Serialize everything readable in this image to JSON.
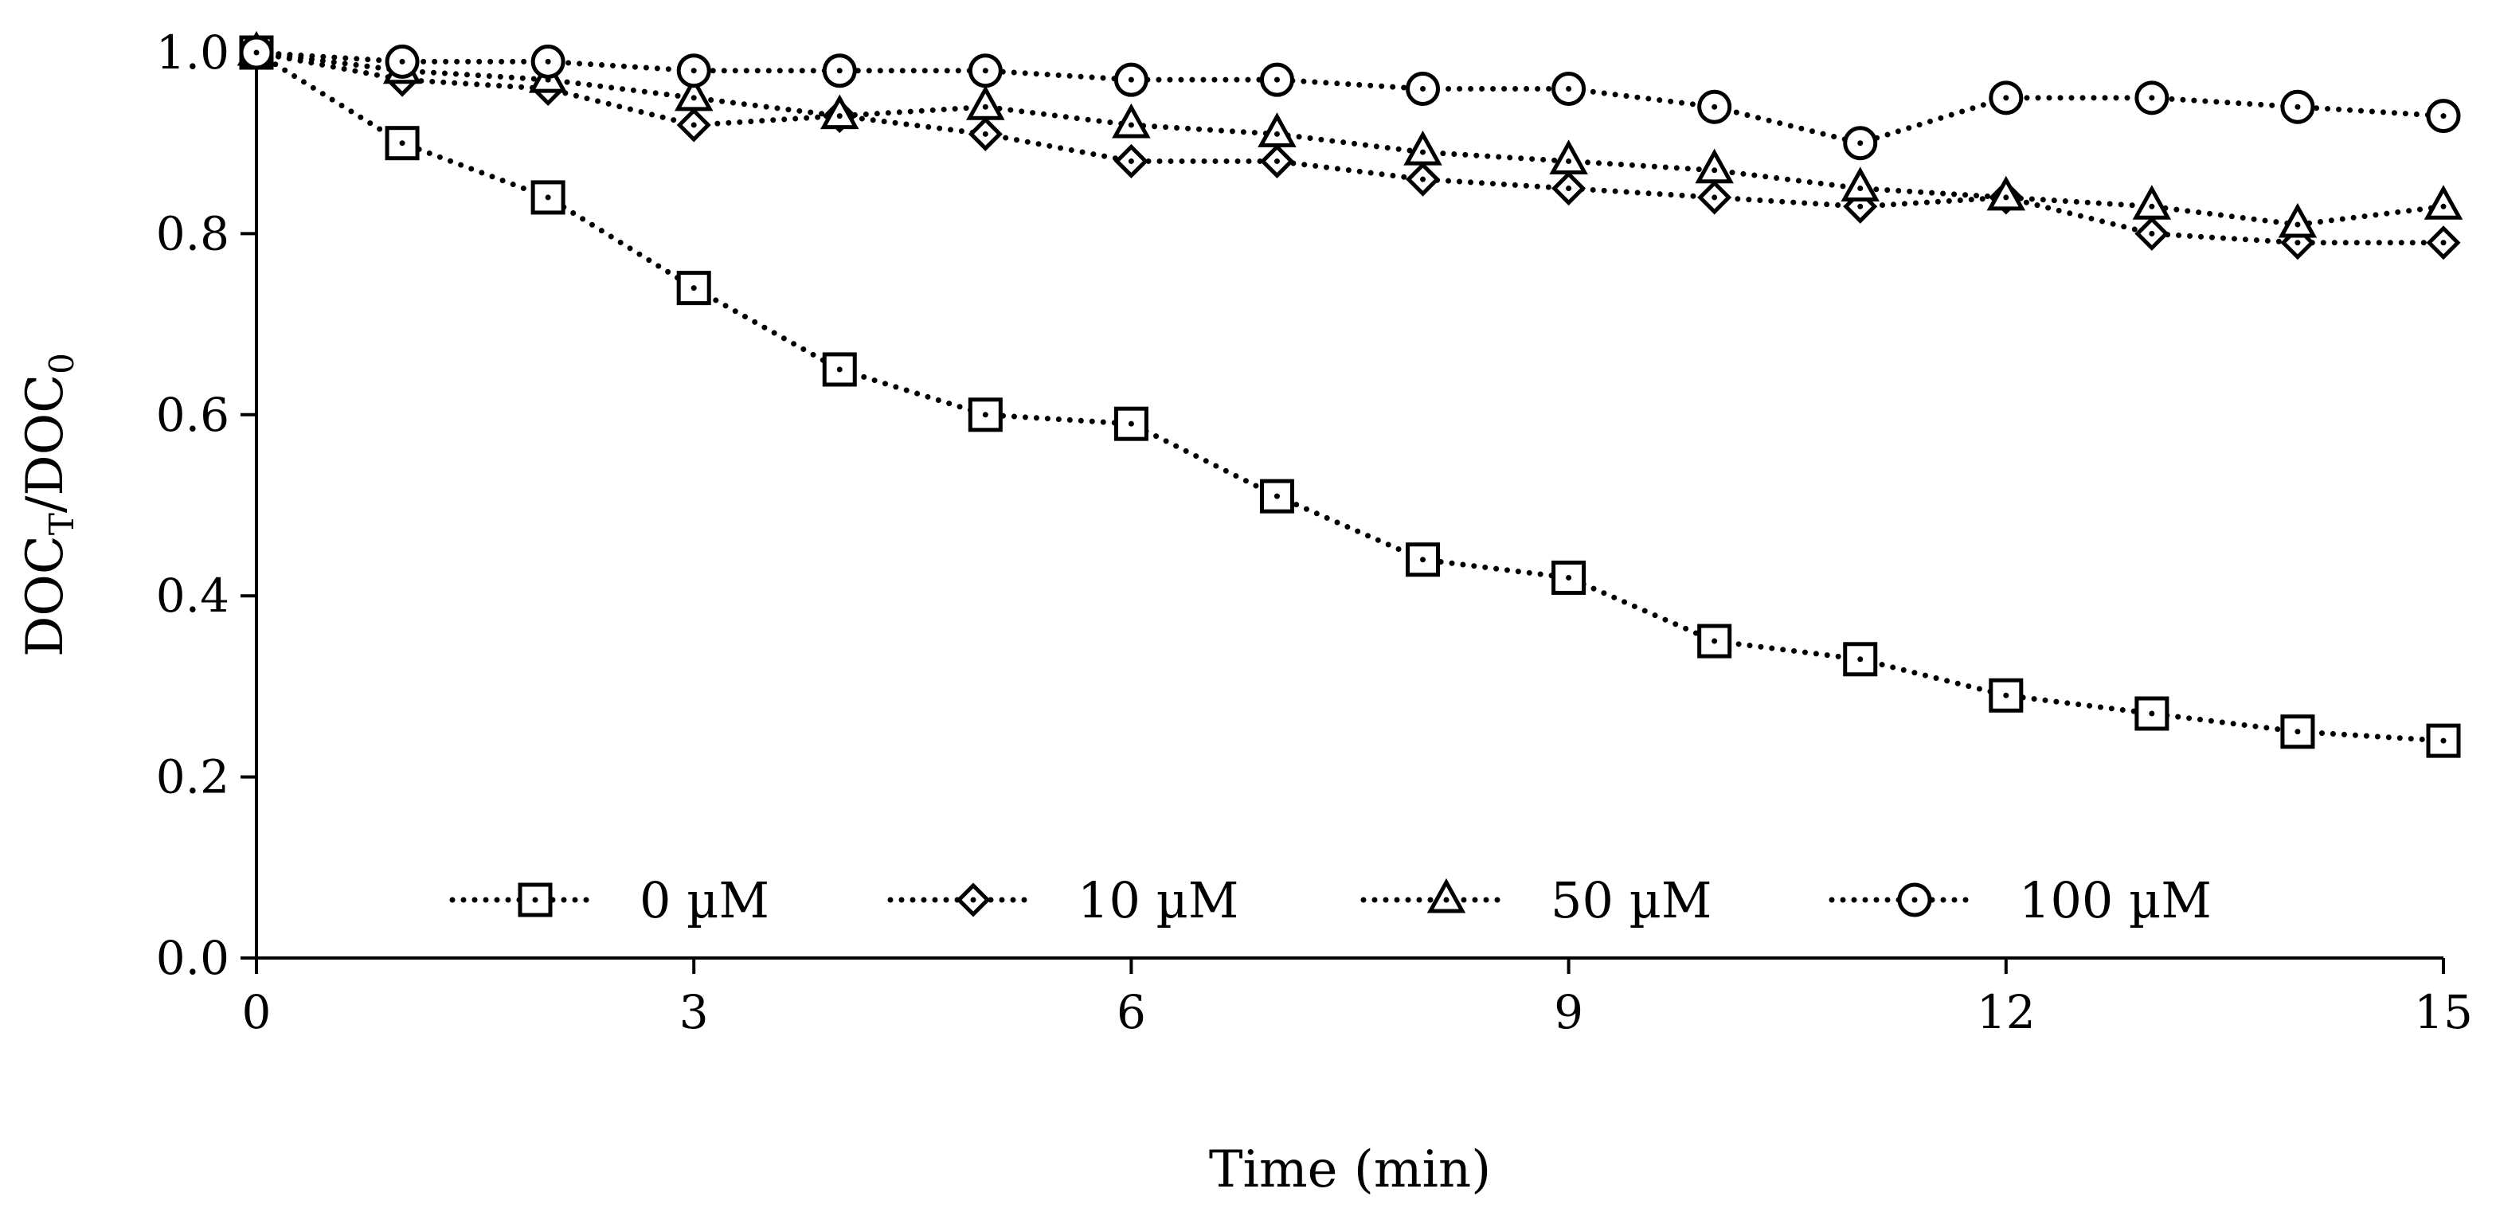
{
  "chart_data": {
    "type": "line",
    "title": "",
    "xlabel": "Time (min)",
    "ylabel": {
      "base": "DOC",
      "sub1": "T",
      "sep": "/DOC",
      "sub2": "0"
    },
    "xlim": [
      0,
      15
    ],
    "ylim": [
      0,
      1
    ],
    "xticks": [
      "0",
      "3",
      "6",
      "9",
      "12",
      "15"
    ],
    "yticks": [
      "0.0",
      "0.2",
      "0.4",
      "0.6",
      "0.8",
      "1.0"
    ],
    "grid": false,
    "legend_position": "bottom-inside",
    "x": [
      0,
      1,
      2,
      3,
      4,
      5,
      6,
      7,
      8,
      9,
      10,
      11,
      12,
      13,
      14,
      15
    ],
    "series": [
      {
        "name": "0 µM",
        "marker": "square",
        "values": [
          1.0,
          0.9,
          0.84,
          0.74,
          0.65,
          0.6,
          0.59,
          0.51,
          0.44,
          0.42,
          0.35,
          0.33,
          0.29,
          0.27,
          0.25,
          0.24
        ]
      },
      {
        "name": "10 µM",
        "marker": "diamond",
        "values": [
          1.0,
          0.97,
          0.96,
          0.92,
          0.93,
          0.91,
          0.88,
          0.88,
          0.86,
          0.85,
          0.84,
          0.83,
          0.84,
          0.8,
          0.79,
          0.79
        ]
      },
      {
        "name": "50 µM",
        "marker": "triangle",
        "values": [
          1.0,
          0.98,
          0.97,
          0.95,
          0.93,
          0.94,
          0.92,
          0.91,
          0.89,
          0.88,
          0.87,
          0.85,
          0.84,
          0.83,
          0.81,
          0.83
        ]
      },
      {
        "name": "100 µM",
        "marker": "circle",
        "values": [
          1.0,
          0.99,
          0.99,
          0.98,
          0.98,
          0.98,
          0.97,
          0.97,
          0.96,
          0.96,
          0.94,
          0.9,
          0.95,
          0.95,
          0.94,
          0.93
        ]
      }
    ],
    "colors": {
      "line": "#000000",
      "marker_fill": "#ffffff"
    }
  }
}
